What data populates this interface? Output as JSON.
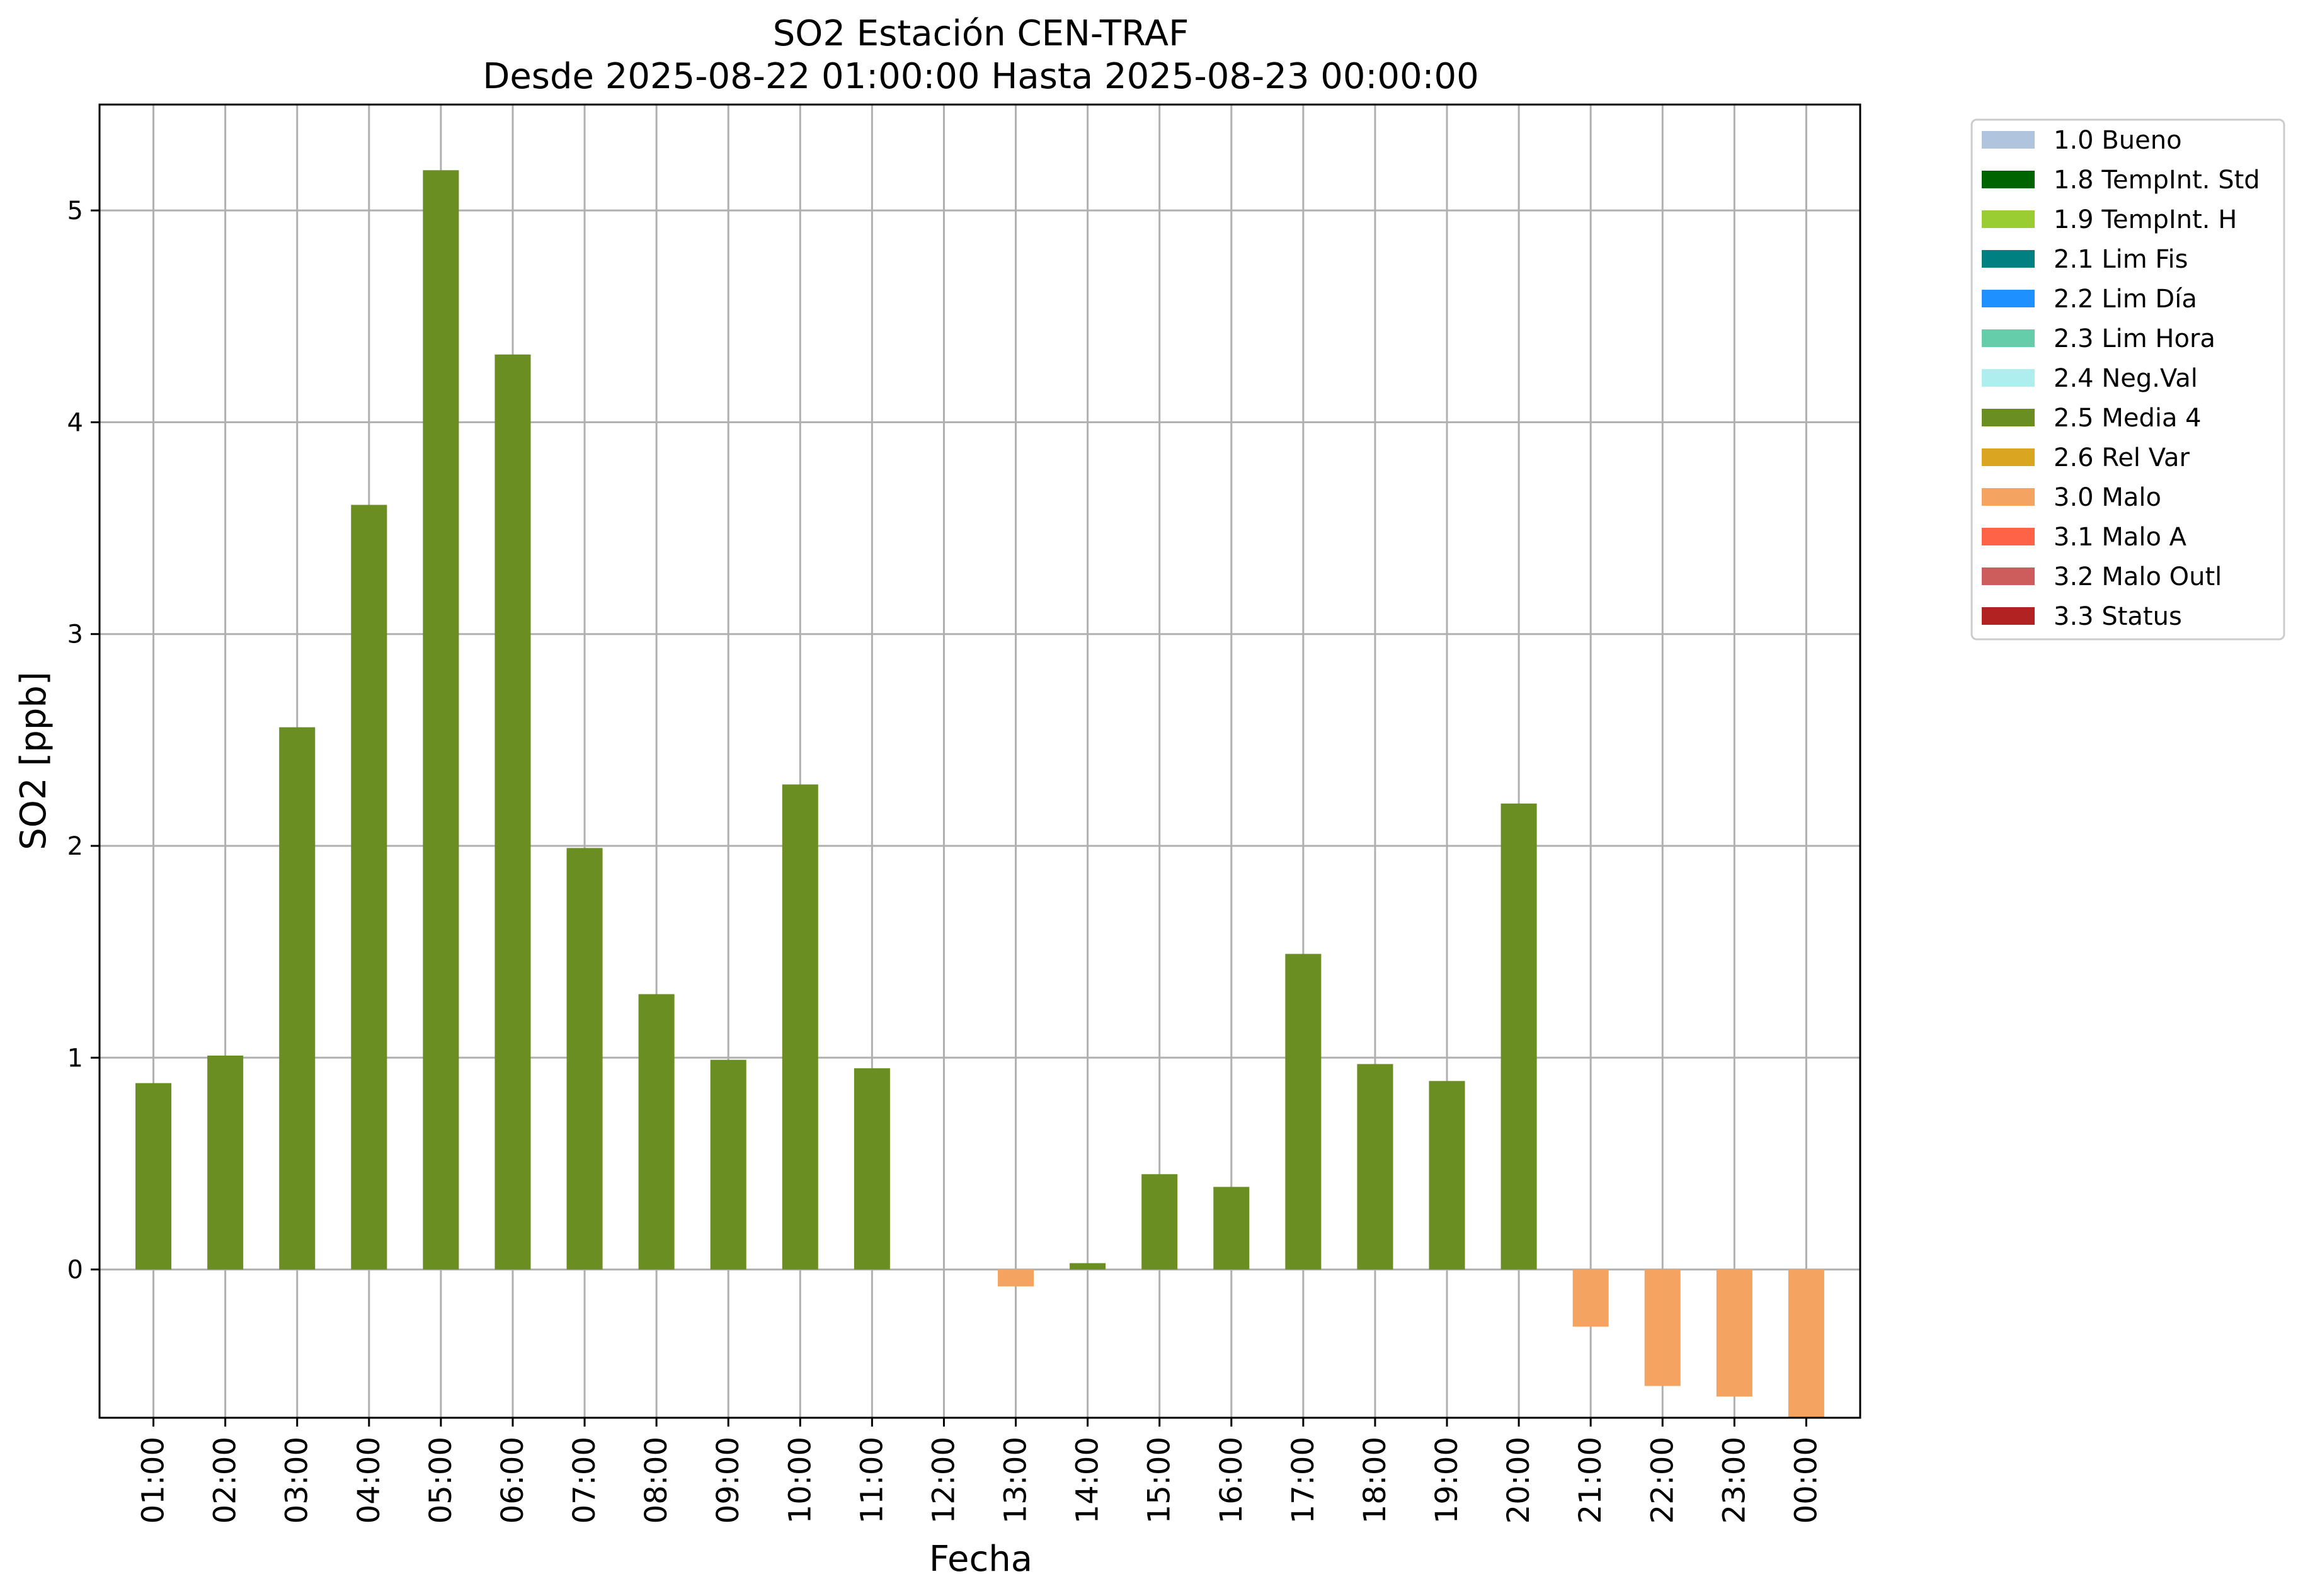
{
  "chart_data": {
    "type": "bar",
    "title": "SO2 Estación CEN-TRAF",
    "subtitle": "Desde 2025-08-22 01:00:00 Hasta 2025-08-23 00:00:00",
    "xlabel": "Fecha",
    "ylabel": "SO2 [ppb]",
    "ylim": [
      -0.7,
      5.5
    ],
    "yticks": [
      0,
      1,
      2,
      3,
      4,
      5
    ],
    "grid": true,
    "legend_position": "outside-top-right",
    "categories": [
      "01:00",
      "02:00",
      "03:00",
      "04:00",
      "05:00",
      "06:00",
      "07:00",
      "08:00",
      "09:00",
      "10:00",
      "11:00",
      "12:00",
      "13:00",
      "14:00",
      "15:00",
      "16:00",
      "17:00",
      "18:00",
      "19:00",
      "20:00",
      "21:00",
      "22:00",
      "23:00",
      "00:00"
    ],
    "values": [
      0.88,
      1.01,
      2.56,
      3.61,
      5.19,
      4.32,
      1.99,
      1.3,
      0.99,
      2.29,
      0.95,
      null,
      -0.08,
      0.03,
      0.45,
      0.39,
      1.49,
      0.97,
      0.89,
      2.2,
      -0.27,
      -0.55,
      -0.6,
      -0.7
    ],
    "flags": [
      "2.5 Media 4",
      "2.5 Media 4",
      "2.5 Media 4",
      "2.5 Media 4",
      "2.5 Media 4",
      "2.5 Media 4",
      "2.5 Media 4",
      "2.5 Media 4",
      "2.5 Media 4",
      "2.5 Media 4",
      "2.5 Media 4",
      null,
      "3.0 Malo",
      "2.5 Media 4",
      "2.5 Media 4",
      "2.5 Media 4",
      "2.5 Media 4",
      "2.5 Media 4",
      "2.5 Media 4",
      "2.5 Media 4",
      "3.0 Malo",
      "3.0 Malo",
      "3.0 Malo",
      "3.0 Malo"
    ],
    "legend": [
      {
        "label": "1.0 Bueno",
        "color": "#b0c4de"
      },
      {
        "label": "1.8 TempInt. Std",
        "color": "#006400"
      },
      {
        "label": "1.9 TempInt. H",
        "color": "#9acd32"
      },
      {
        "label": "2.1 Lim Fis",
        "color": "#008080"
      },
      {
        "label": "2.2 Lim Día",
        "color": "#1e90ff"
      },
      {
        "label": "2.3 Lim Hora",
        "color": "#66cdaa"
      },
      {
        "label": "2.4 Neg.Val",
        "color": "#afeeee"
      },
      {
        "label": "2.5 Media 4",
        "color": "#6b8e23"
      },
      {
        "label": "2.6 Rel Var",
        "color": "#daa520"
      },
      {
        "label": "3.0 Malo",
        "color": "#f4a460"
      },
      {
        "label": "3.1 Malo A",
        "color": "#ff6347"
      },
      {
        "label": "3.2 Malo Outl",
        "color": "#cd5c5c"
      },
      {
        "label": "3.3 Status",
        "color": "#b22222"
      }
    ]
  }
}
